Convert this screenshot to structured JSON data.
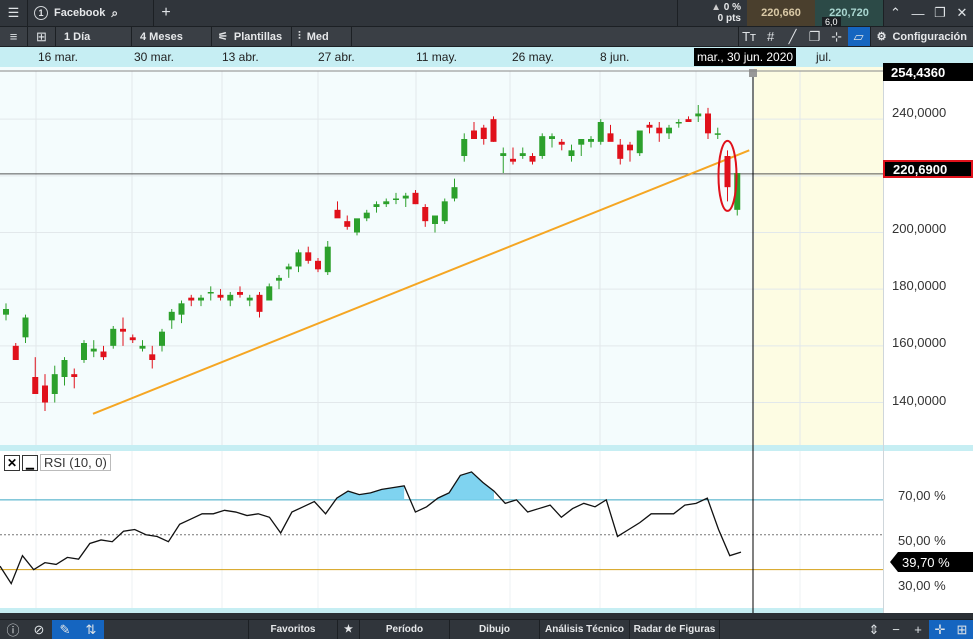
{
  "topbar": {
    "tab_number": "1",
    "instrument": "Facebook",
    "add": "+",
    "change_pct": "0 %",
    "change_pts": "0 pts",
    "bid": "220,660",
    "ask": "220,720",
    "spread": "6,0"
  },
  "toolbar": {
    "period": "1 Día",
    "range": "4 Meses",
    "templates": "Plantillas",
    "indicator": "Med",
    "settings": "Configuración"
  },
  "datebar": {
    "labels": [
      "16 mar.",
      "30 mar.",
      "13 abr.",
      "27 abr.",
      "11 may.",
      "26 may.",
      "8 jun.",
      "jul."
    ],
    "cursor_date": "mar., 30 jun. 2020"
  },
  "price_axis": {
    "labels": [
      "240,0000",
      "200,0000",
      "180,0000",
      "160,0000",
      "140,0000"
    ],
    "high_tag": "254,4360",
    "last_tag": "220,6900"
  },
  "rsi": {
    "title": "RSI (10, 0)",
    "labels": [
      "70,00 %",
      "50,00 %",
      "30,00 %"
    ],
    "current": "39,70 %"
  },
  "bottombar": {
    "items": [
      "Favoritos",
      "Período",
      "Dibujo",
      "Análisis Técnico",
      "Radar de Figuras"
    ]
  },
  "colors": {
    "up": "#2ca02c",
    "down": "#e0111b",
    "trendline": "#f5a623",
    "rsi_fill": "#7fd3f0",
    "forecast": "#fdfce3"
  },
  "chart_data": {
    "type": "candlestick",
    "ylim": [
      125,
      257
    ],
    "candles": [
      {
        "o": 171,
        "h": 175,
        "l": 169,
        "c": 173
      },
      {
        "o": 160,
        "h": 161,
        "l": 155,
        "c": 155
      },
      {
        "o": 163,
        "h": 171,
        "l": 161,
        "c": 170
      },
      {
        "o": 149,
        "h": 156,
        "l": 143,
        "c": 143
      },
      {
        "o": 146,
        "h": 150,
        "l": 137,
        "c": 140
      },
      {
        "o": 143,
        "h": 153,
        "l": 140,
        "c": 150
      },
      {
        "o": 149,
        "h": 156,
        "l": 146,
        "c": 155
      },
      {
        "o": 150,
        "h": 152,
        "l": 145,
        "c": 149
      },
      {
        "o": 155,
        "h": 162,
        "l": 154,
        "c": 161
      },
      {
        "o": 158,
        "h": 162,
        "l": 156,
        "c": 159
      },
      {
        "o": 158,
        "h": 160,
        "l": 155,
        "c": 156
      },
      {
        "o": 160,
        "h": 167,
        "l": 159,
        "c": 166
      },
      {
        "o": 166,
        "h": 170,
        "l": 160,
        "c": 165
      },
      {
        "o": 163,
        "h": 164,
        "l": 161,
        "c": 162
      },
      {
        "o": 159,
        "h": 162,
        "l": 158,
        "c": 160
      },
      {
        "o": 157,
        "h": 160,
        "l": 152,
        "c": 155
      },
      {
        "o": 160,
        "h": 166,
        "l": 158,
        "c": 165
      },
      {
        "o": 169,
        "h": 173,
        "l": 166,
        "c": 172
      },
      {
        "o": 171,
        "h": 176,
        "l": 168,
        "c": 175
      },
      {
        "o": 177,
        "h": 178,
        "l": 174,
        "c": 176
      },
      {
        "o": 176,
        "h": 178,
        "l": 174,
        "c": 177
      },
      {
        "o": 179,
        "h": 181,
        "l": 176,
        "c": 179
      },
      {
        "o": 178,
        "h": 180,
        "l": 176,
        "c": 177
      },
      {
        "o": 176,
        "h": 179,
        "l": 174,
        "c": 178
      },
      {
        "o": 179,
        "h": 181,
        "l": 177,
        "c": 178
      },
      {
        "o": 176,
        "h": 178,
        "l": 174,
        "c": 177
      },
      {
        "o": 178,
        "h": 179,
        "l": 170,
        "c": 172
      },
      {
        "o": 176,
        "h": 182,
        "l": 176,
        "c": 181
      },
      {
        "o": 183,
        "h": 185,
        "l": 180,
        "c": 184
      },
      {
        "o": 187,
        "h": 189,
        "l": 184,
        "c": 188
      },
      {
        "o": 188,
        "h": 194,
        "l": 186,
        "c": 193
      },
      {
        "o": 193,
        "h": 195,
        "l": 189,
        "c": 190
      },
      {
        "o": 190,
        "h": 191,
        "l": 186,
        "c": 187
      },
      {
        "o": 186,
        "h": 197,
        "l": 185,
        "c": 195
      },
      {
        "o": 208,
        "h": 211,
        "l": 206,
        "c": 205
      },
      {
        "o": 204,
        "h": 206,
        "l": 201,
        "c": 202
      },
      {
        "o": 200,
        "h": 204,
        "l": 199,
        "c": 205
      },
      {
        "o": 205,
        "h": 208,
        "l": 204,
        "c": 207
      },
      {
        "o": 209,
        "h": 211,
        "l": 207,
        "c": 210
      },
      {
        "o": 210,
        "h": 212,
        "l": 209,
        "c": 211
      },
      {
        "o": 212,
        "h": 214,
        "l": 210,
        "c": 212
      },
      {
        "o": 212,
        "h": 214,
        "l": 209,
        "c": 213
      },
      {
        "o": 214,
        "h": 215,
        "l": 210,
        "c": 210
      },
      {
        "o": 209,
        "h": 210,
        "l": 202,
        "c": 204
      },
      {
        "o": 203,
        "h": 206,
        "l": 200,
        "c": 206
      },
      {
        "o": 204,
        "h": 212,
        "l": 203,
        "c": 211
      },
      {
        "o": 212,
        "h": 219,
        "l": 211,
        "c": 216
      },
      {
        "o": 227,
        "h": 235,
        "l": 225,
        "c": 233
      },
      {
        "o": 236,
        "h": 239,
        "l": 233,
        "c": 233
      },
      {
        "o": 237,
        "h": 238,
        "l": 231,
        "c": 233
      },
      {
        "o": 240,
        "h": 241,
        "l": 232,
        "c": 232
      },
      {
        "o": 227,
        "h": 230,
        "l": 221,
        "c": 228
      },
      {
        "o": 226,
        "h": 230,
        "l": 224,
        "c": 225
      },
      {
        "o": 227,
        "h": 230,
        "l": 226,
        "c": 228
      },
      {
        "o": 227,
        "h": 228,
        "l": 224,
        "c": 225
      },
      {
        "o": 227,
        "h": 235,
        "l": 226,
        "c": 234
      },
      {
        "o": 233,
        "h": 235,
        "l": 230,
        "c": 234
      },
      {
        "o": 232,
        "h": 233,
        "l": 229,
        "c": 231
      },
      {
        "o": 227,
        "h": 231,
        "l": 225,
        "c": 229
      },
      {
        "o": 231,
        "h": 232,
        "l": 227,
        "c": 233
      },
      {
        "o": 232,
        "h": 234,
        "l": 230,
        "c": 233
      },
      {
        "o": 232,
        "h": 240,
        "l": 231,
        "c": 239
      },
      {
        "o": 235,
        "h": 238,
        "l": 233,
        "c": 232
      },
      {
        "o": 231,
        "h": 233,
        "l": 224,
        "c": 226
      },
      {
        "o": 231,
        "h": 232,
        "l": 225,
        "c": 229
      },
      {
        "o": 228,
        "h": 236,
        "l": 227,
        "c": 236
      },
      {
        "o": 238,
        "h": 239,
        "l": 235,
        "c": 237
      },
      {
        "o": 237,
        "h": 239,
        "l": 232,
        "c": 235
      },
      {
        "o": 235,
        "h": 238,
        "l": 233,
        "c": 237
      },
      {
        "o": 239,
        "h": 240,
        "l": 237,
        "c": 239
      },
      {
        "o": 240,
        "h": 241,
        "l": 239,
        "c": 239
      },
      {
        "o": 241,
        "h": 245,
        "l": 239,
        "c": 242
      },
      {
        "o": 242,
        "h": 244,
        "l": 233,
        "c": 235
      },
      {
        "o": 235,
        "h": 237,
        "l": 233,
        "c": 235
      },
      {
        "o": 227,
        "h": 229,
        "l": 211,
        "c": 216
      },
      {
        "o": 208,
        "h": 221,
        "l": 206,
        "c": 221
      }
    ],
    "trendline": [
      {
        "i": 4,
        "p": 136
      },
      {
        "i": 75,
        "p": 229
      }
    ],
    "rsi_values": [
      32,
      22,
      38,
      30,
      34,
      33,
      37,
      36,
      45,
      47,
      46,
      52,
      53,
      50,
      49,
      46,
      56,
      59,
      62,
      62,
      64,
      63,
      61,
      62,
      60,
      51,
      63,
      66,
      69,
      62,
      71,
      75,
      73,
      74,
      76,
      77,
      78,
      63,
      66,
      71,
      74,
      84,
      86,
      80,
      75,
      68,
      70,
      63,
      65,
      67,
      60,
      65,
      68,
      66,
      70,
      49,
      53,
      57,
      62,
      62,
      62,
      67,
      68,
      71,
      53,
      38,
      40
    ]
  }
}
